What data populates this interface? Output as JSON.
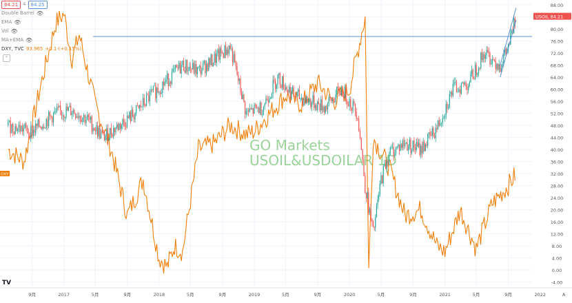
{
  "legend": {
    "chip_red": "84.21",
    "chip_blue": "84.25",
    "items": [
      {
        "label": "Double Barrel",
        "icon": "eye-hidden-icon"
      },
      {
        "label": "EMA",
        "icon": "eye-hidden-icon"
      },
      {
        "label": "Vol",
        "icon": "eye-hidden-icon"
      },
      {
        "label": "MA+EMA",
        "icon": "eye-hidden-icon"
      }
    ],
    "dxy_label": "DXY, TVC",
    "dxy_value": "93.965",
    "dxy_change": "+0.1·(+0.15%)"
  },
  "watermark": {
    "line1": "GO Markets",
    "line2": "USOIL&USDOILAR  1D"
  },
  "price_tag": {
    "symbol": "USOIL",
    "value": "84.21",
    "color": "#ef5350"
  },
  "dxy_tag": "DXY",
  "logo_text": "TV",
  "colors": {
    "up": "#26a69a",
    "down": "#ef5350",
    "dxy": "#f07f09",
    "hline": "#5b8fd6",
    "grid": "#f0f3fa",
    "axis_text": "#555555"
  },
  "chart_data": {
    "type": "line",
    "x_tick_labels": [
      "9月",
      "2017",
      "5月",
      "9月",
      "2018",
      "5月",
      "9月",
      "2019",
      "5月",
      "9月",
      "2020",
      "5月",
      "9月",
      "2021",
      "5月",
      "9月",
      "2022"
    ],
    "y_tick_labels": [
      "88.00",
      "84.00",
      "80.00",
      "76.00",
      "72.00",
      "68.00",
      "64.00",
      "60.00",
      "56.00",
      "52.00",
      "48.00",
      "44.00",
      "40.00",
      "36.00",
      "32.00",
      "28.00",
      "24.00",
      "20.00",
      "16.00",
      "12.00",
      "8.00",
      "4.00",
      "0.00",
      "-4.00",
      "-8.00"
    ],
    "ylim": [
      -8,
      88
    ],
    "horizontal_line": 77.5,
    "series": [
      {
        "name": "USOIL",
        "x": [
          "2016-06",
          "2016-09",
          "2016-12",
          "2017-02",
          "2017-04",
          "2017-06",
          "2017-08",
          "2017-10",
          "2017-12",
          "2018-02",
          "2018-04",
          "2018-06",
          "2018-08",
          "2018-10",
          "2018-12",
          "2019-02",
          "2019-04",
          "2019-06",
          "2019-08",
          "2019-10",
          "2019-12",
          "2020-02",
          "2020-03",
          "2020-04",
          "2020-05",
          "2020-06",
          "2020-08",
          "2020-10",
          "2020-12",
          "2021-02",
          "2021-04",
          "2021-06",
          "2021-08",
          "2021-09",
          "2021-10"
        ],
        "values": [
          48,
          46,
          52,
          53,
          50,
          44,
          48,
          52,
          58,
          63,
          68,
          66,
          70,
          74,
          52,
          54,
          64,
          58,
          56,
          54,
          60,
          52,
          28,
          12,
          30,
          39,
          42,
          40,
          47,
          60,
          62,
          72,
          68,
          74,
          84
        ]
      },
      {
        "name": "DXY",
        "x": [
          "2016-06",
          "2016-08",
          "2016-10",
          "2016-12",
          "2017-01",
          "2017-02",
          "2017-03",
          "2017-05",
          "2017-07",
          "2017-09",
          "2017-11",
          "2018-01",
          "2018-02",
          "2018-03",
          "2018-04",
          "2018-06",
          "2018-08",
          "2018-10",
          "2018-12",
          "2019-01",
          "2019-03",
          "2019-05",
          "2019-07",
          "2019-09",
          "2019-11",
          "2020-01",
          "2020-03",
          "2020-03-15",
          "2020-04",
          "2020-06",
          "2020-08",
          "2020-10",
          "2020-12",
          "2021-01",
          "2021-03",
          "2021-05",
          "2021-07",
          "2021-09",
          "2021-10"
        ],
        "values": [
          40,
          36,
          60,
          82,
          85,
          70,
          78,
          55,
          40,
          18,
          30,
          4,
          1,
          8,
          6,
          40,
          42,
          48,
          45,
          46,
          52,
          58,
          55,
          62,
          56,
          60,
          84,
          0,
          44,
          34,
          18,
          20,
          8,
          6,
          20,
          7,
          22,
          28,
          32
        ]
      }
    ]
  }
}
